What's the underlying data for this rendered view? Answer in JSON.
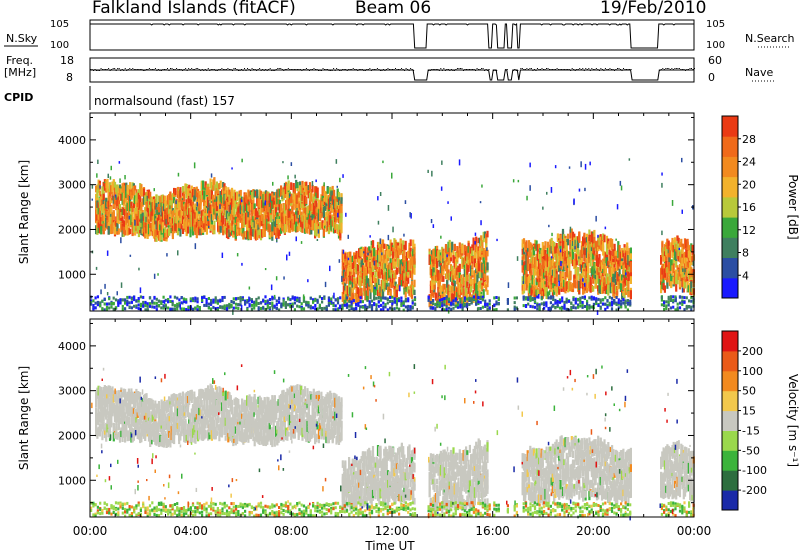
{
  "header": {
    "station": "Falkland Islands (fitACF)",
    "beam": "Beam 06",
    "date": "19/Feb/2010"
  },
  "summary": {
    "nsky_label": "N.Sky",
    "nsearch_label": "N.Search",
    "freq_label_1": "Freq.",
    "freq_label_2": "[MHz]",
    "nave_label": "Nave",
    "cpid_label": "CPID",
    "cpid_value": "normalsound (fast) 157",
    "nsky_ticks": [
      "10^5",
      "10^0"
    ],
    "nsearch_ticks": [
      "10^5",
      "10^0"
    ],
    "freq_ticks": [
      "18",
      "8"
    ],
    "nave_ticks": [
      "60",
      "0"
    ]
  },
  "chart_data": [
    {
      "type": "heatmap",
      "panel": "power",
      "ylabel": "Slant Range [km]",
      "xlabel": "",
      "ylim": [
        180,
        4600
      ],
      "yticks": [
        1000,
        2000,
        3000,
        4000
      ],
      "xticks": [
        "00:00",
        "04:00",
        "08:00",
        "12:00",
        "16:00",
        "20:00",
        "00:00"
      ],
      "colorbar": {
        "label": "Power [dB]",
        "range": [
          0,
          32
        ],
        "ticks": [
          4,
          8,
          12,
          16,
          20,
          24,
          28
        ],
        "colors": [
          "#1a1aff",
          "#2b4ea3",
          "#3f7f5f",
          "#3aa83a",
          "#b8c93a",
          "#f2b22c",
          "#f28a1f",
          "#f06a1a",
          "#ea3a14"
        ]
      },
      "echo_regions": [
        {
          "t0": 0.2,
          "t1": 10.0,
          "r0": 1900,
          "r1": 2900,
          "level": "high"
        },
        {
          "t0": 10.0,
          "t1": 12.9,
          "r0": 500,
          "r1": 1600,
          "level": "high"
        },
        {
          "t0": 13.4,
          "t1": 15.8,
          "r0": 400,
          "r1": 1700,
          "level": "high"
        },
        {
          "t0": 17.0,
          "t1": 21.5,
          "r0": 600,
          "r1": 1800,
          "level": "high"
        },
        {
          "t0": 22.6,
          "t1": 24.0,
          "r0": 600,
          "r1": 1600,
          "level": "high"
        },
        {
          "t0": 0.0,
          "t1": 24.0,
          "r0": 200,
          "r1": 500,
          "level": "low"
        }
      ]
    },
    {
      "type": "heatmap",
      "panel": "velocity",
      "ylabel": "Slant Range [km]",
      "xlabel": "Time UT",
      "ylim": [
        180,
        4600
      ],
      "yticks": [
        1000,
        2000,
        3000,
        4000
      ],
      "xticks": [
        "00:00",
        "04:00",
        "08:00",
        "12:00",
        "16:00",
        "20:00",
        "00:00"
      ],
      "colorbar": {
        "label": "Velocity [m s-1]",
        "labels": [
          "200",
          "100",
          "50",
          "15",
          "-15",
          "-50",
          "-100",
          "-200"
        ],
        "colors": [
          "#1a2aa8",
          "#2d6e3f",
          "#3bb33b",
          "#9ad84c",
          "#c8c8c0",
          "#f2c84c",
          "#f28a1f",
          "#ea5a18",
          "#e01414"
        ]
      }
    }
  ]
}
